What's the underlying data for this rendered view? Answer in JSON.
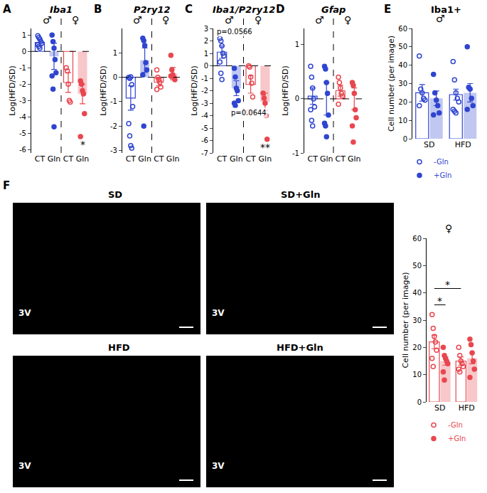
{
  "chart_data": [
    {
      "type": "dot_bar",
      "panel": "A",
      "title": "Iba1",
      "y_label": "Log(HFD/SD)",
      "ylim": [
        -6.2,
        1.4
      ],
      "yticks": [
        -6,
        -5,
        -4,
        -3,
        -2,
        -1,
        0,
        1
      ],
      "grid": false,
      "groups": [
        {
          "label": "♂",
          "color": "#2f45d0",
          "bars": [
            {
              "name": "CT",
              "marker": "open",
              "mean": 0.55,
              "error": 0.2,
              "values": [
                0.95,
                0.85,
                0.75,
                0.6,
                0.5,
                0.4,
                0.3,
                0.2
              ]
            },
            {
              "name": "Gln",
              "marker": "filled",
              "mean": -0.3,
              "error": 0.8,
              "values": [
                1.0,
                0.6,
                0.2,
                -0.5,
                -1.3,
                -1.5,
                -2.3,
                -4.6
              ]
            }
          ]
        },
        {
          "label": "♀",
          "color": "#e8474f",
          "bars": [
            {
              "name": "CT",
              "marker": "open",
              "mean": -1.9,
              "error": 0.6,
              "values": [
                -1.0,
                -1.2,
                -2.0,
                -3.0,
                -3.1
              ]
            },
            {
              "name": "Gln",
              "marker": "filled",
              "mean": -2.6,
              "error": 0.6,
              "significance": "*",
              "values": [
                -1.8,
                -2.0,
                -2.4,
                -2.6,
                -3.8,
                -5.2
              ]
            }
          ]
        }
      ]
    },
    {
      "type": "dot_bar",
      "panel": "B",
      "title": "P2ry12",
      "y_label": "Log(HFD/SD)",
      "ylim": [
        -3.1,
        2.0
      ],
      "yticks": [
        -3,
        -2,
        -1,
        0,
        1
      ],
      "grid": false,
      "groups": [
        {
          "label": "♂",
          "color": "#2f45d0",
          "bars": [
            {
              "name": "CT",
              "marker": "open",
              "mean": -0.85,
              "error": 0.5,
              "values": [
                0.0,
                -0.05,
                0.02,
                -0.3,
                -1.2,
                -1.9,
                -2.4,
                -2.8,
                -2.9
              ]
            },
            {
              "name": "Gln",
              "marker": "filled",
              "mean": 0.7,
              "error": 0.5,
              "values": [
                1.6,
                1.5,
                1.3,
                0.6,
                0.3,
                0.1,
                -2.0
              ]
            }
          ]
        },
        {
          "label": "♀",
          "color": "#e8474f",
          "bars": [
            {
              "name": "CT",
              "marker": "open",
              "mean": -0.2,
              "error": 0.15,
              "values": [
                0.3,
                0.0,
                -0.1,
                -0.2,
                -0.4,
                -0.5
              ]
            },
            {
              "name": "Gln",
              "marker": "filled",
              "mean": 0.15,
              "error": 0.25,
              "values": [
                0.9,
                0.3,
                0.1,
                0.0,
                -0.1,
                0.05
              ]
            }
          ]
        }
      ]
    },
    {
      "type": "dot_bar",
      "panel": "C",
      "title": "Iba1/P2ry12",
      "y_label": "Log(HFD/SD)",
      "ylim": [
        -7,
        3
      ],
      "yticks": [
        -7,
        -6,
        -5,
        -4,
        -3,
        -2,
        -1,
        0,
        1,
        2,
        3
      ],
      "grid": false,
      "annotations": [
        {
          "text": "p=0.0566",
          "bar": 0
        },
        {
          "text": "p=0.0644",
          "bar": 1
        }
      ],
      "groups": [
        {
          "label": "♂",
          "color": "#2f45d0",
          "bars": [
            {
              "name": "CT",
              "marker": "open",
              "mean": 1.1,
              "error": 0.5,
              "values": [
                2.2,
                2.0,
                1.6,
                1.0,
                0.8,
                0.3,
                -0.6,
                -1.1
              ]
            },
            {
              "name": "Gln",
              "marker": "filled",
              "mean": -1.8,
              "error": 0.6,
              "values": [
                -0.2,
                -0.9,
                -1.8,
                -2.0,
                -2.8,
                -3.0,
                -3.2
              ]
            }
          ]
        },
        {
          "label": "♀",
          "color": "#e8474f",
          "bars": [
            {
              "name": "CT",
              "marker": "open",
              "mean": -1.5,
              "error": 0.7,
              "values": [
                0.0,
                -0.1,
                -0.9,
                -1.4,
                -2.5,
                -3.7
              ]
            },
            {
              "name": "Gln",
              "marker": "filled",
              "mean": -2.9,
              "error": 0.7,
              "significance": "**",
              "values": [
                -2.2,
                -2.6,
                -3.0,
                -4.0,
                -5.9
              ]
            }
          ]
        }
      ]
    },
    {
      "type": "dot_bar",
      "panel": "D",
      "title": "Gfap",
      "y_label": "Log(HFD/SD)",
      "ylim": [
        -1,
        1.3
      ],
      "yticks": [
        -1,
        0,
        1
      ],
      "grid": false,
      "groups": [
        {
          "label": "♂",
          "color": "#2f45d0",
          "bars": [
            {
              "name": "CT",
              "marker": "open",
              "mean": 0.05,
              "error": 0.15,
              "values": [
                0.6,
                0.4,
                0.2,
                0.0,
                -0.15,
                -0.2,
                -0.4,
                -0.5
              ]
            },
            {
              "name": "Gln",
              "marker": "filled",
              "mean": 0.0,
              "error": 0.3,
              "values": [
                0.6,
                0.55,
                0.3,
                0.1,
                -0.3,
                -0.45,
                -0.5,
                -0.7
              ]
            }
          ]
        },
        {
          "label": "♀",
          "color": "#e8474f",
          "bars": [
            {
              "name": "CT",
              "marker": "open",
              "mean": 0.15,
              "error": 0.1,
              "values": [
                0.4,
                0.3,
                0.2,
                0.1,
                0.05,
                -0.1
              ]
            },
            {
              "name": "Gln",
              "marker": "filled",
              "mean": 0.0,
              "error": 0.2,
              "values": [
                0.3,
                0.25,
                0.1,
                -0.2,
                -0.35,
                -0.5,
                -0.8
              ]
            }
          ]
        }
      ]
    },
    {
      "type": "grouped_dot_bar",
      "panel": "E",
      "title": "Iba1+",
      "group_label": "♂",
      "y_label": "Cell number (per image)",
      "color": "#2f45d0",
      "ylim": [
        0,
        60
      ],
      "yticks": [
        0,
        10,
        20,
        30,
        40,
        50,
        60
      ],
      "grid": false,
      "legend": "bottom",
      "categories": [
        "SD",
        "HFD"
      ],
      "series": [
        {
          "name": "-Gln",
          "marker": "open",
          "means": [
            25,
            24
          ],
          "errors": [
            4.5,
            3
          ],
          "values": [
            [
              45,
              27,
              25,
              22,
              21,
              18
            ],
            [
              42,
              32,
              25,
              22,
              20,
              16,
              15,
              14
            ]
          ]
        },
        {
          "name": "+Gln",
          "marker": "filled",
          "means": [
            22,
            25
          ],
          "errors": [
            4,
            5
          ],
          "values": [
            [
              35,
              25,
              21,
              18,
              14,
              13
            ],
            [
              50,
              28,
              27,
              22,
              18,
              16
            ]
          ]
        }
      ]
    },
    {
      "type": "grouped_dot_bar",
      "group_label": "♀",
      "y_label": "Cell number (per image)",
      "color": "#e8474f",
      "ylim": [
        0,
        60
      ],
      "yticks": [
        0,
        10,
        20,
        30,
        40,
        50,
        60
      ],
      "grid": false,
      "legend": "bottom",
      "categories": [
        "SD",
        "HFD"
      ],
      "comparisons": [
        {
          "from": [
            0,
            0
          ],
          "to": [
            0,
            1
          ],
          "text": "*"
        },
        {
          "from": [
            0,
            0
          ],
          "to": [
            1,
            0
          ],
          "text": "*"
        }
      ],
      "series": [
        {
          "name": "-Gln",
          "marker": "open",
          "means": [
            22,
            15
          ],
          "errors": [
            2.5,
            1.5
          ],
          "values": [
            [
              32,
              27,
              24,
              22,
              19,
              16,
              13
            ],
            [
              20,
              17,
              15,
              14,
              13,
              12,
              11
            ]
          ]
        },
        {
          "name": "+Gln",
          "marker": "filled",
          "means": [
            15,
            16
          ],
          "errors": [
            1.5,
            2
          ],
          "values": [
            [
              20,
              17,
              16,
              15,
              14,
              11,
              8
            ],
            [
              23,
              21,
              18,
              15,
              12,
              9
            ]
          ]
        }
      ]
    }
  ],
  "image_panels": {
    "panel": "F",
    "images": [
      {
        "title": "SD",
        "label": "3V"
      },
      {
        "title": "SD+Gln",
        "label": "3V"
      },
      {
        "title": "HFD",
        "label": "3V"
      },
      {
        "title": "HFD+Gln",
        "label": "3V"
      }
    ]
  }
}
